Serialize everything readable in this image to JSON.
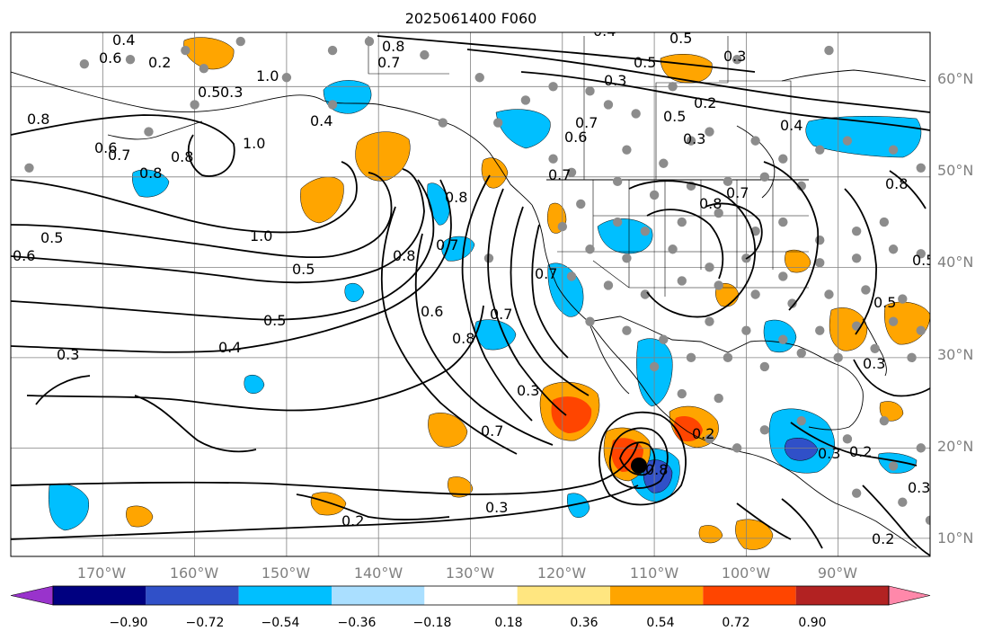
{
  "title": "2025061400 F060",
  "map": {
    "lon_range": [
      -180,
      -80
    ],
    "lat_range": [
      8,
      66
    ],
    "lon_ticks": [
      "170°W",
      "160°W",
      "150°W",
      "140°W",
      "130°W",
      "120°W",
      "110°W",
      "100°W",
      "90°W"
    ],
    "lat_ticks": [
      "10°N",
      "20°N",
      "30°N",
      "40°N",
      "50°N",
      "60°N"
    ],
    "contour_labels": [
      "0.8",
      "0.7",
      "0.5",
      "0.4",
      "0.3",
      "0.2",
      "0.5",
      "0.6",
      "0.7",
      "1.0",
      "0.8",
      "0.6",
      "0.4",
      "1.0",
      "0.6",
      "0.8",
      "0.5",
      "1.0",
      "0.8",
      "0.8",
      "0.7",
      "0.5",
      "0.6",
      "0.5",
      "0.4",
      "0.3",
      "0.6",
      "0.8",
      "0.7",
      "0.3",
      "0.7",
      "0.2",
      "0.3",
      "0.2",
      "0.7",
      "0.3",
      "0.2",
      "0.5",
      "0.3",
      "0.2",
      "0.8",
      "0.3",
      "0.4",
      "0.5",
      "0.4",
      "0.2",
      "0.3",
      "0.3",
      "0.7",
      "0.8",
      "0.7",
      "0.8",
      "0.8",
      "0.7",
      "0.5",
      "0.3",
      "0.5"
    ],
    "colors": {
      "grid": "#808080",
      "contour": "#000000",
      "station": "#8c8c8c",
      "coast": "#000000"
    }
  },
  "colorbar": {
    "tick_labels": [
      "−0.90",
      "−0.72",
      "−0.54",
      "−0.36",
      "−0.18",
      "0.18",
      "0.36",
      "0.54",
      "0.72",
      "0.90"
    ],
    "levels": [
      -0.9,
      -0.72,
      -0.54,
      -0.36,
      -0.18,
      0.18,
      0.36,
      0.54,
      0.72,
      0.9
    ],
    "colors": [
      "#9933cc",
      "#000080",
      "#3050c8",
      "#00bfff",
      "#aadfff",
      "#ffffff",
      "#ffe680",
      "#ffa500",
      "#ff4500",
      "#b22222",
      "#ff88aa"
    ]
  }
}
